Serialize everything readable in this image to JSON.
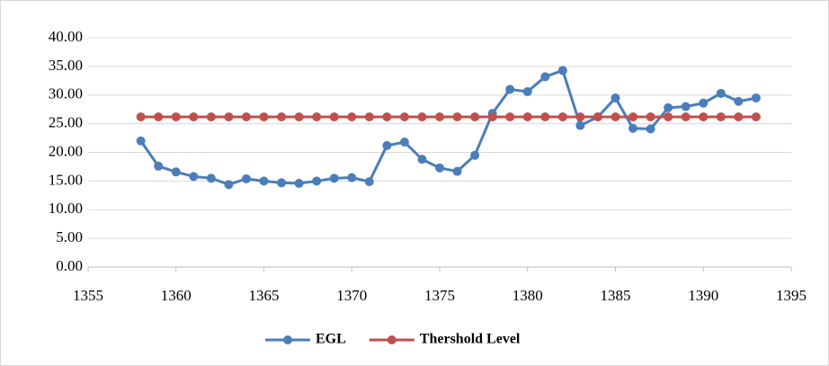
{
  "chart_data": {
    "type": "line",
    "x": [
      1358,
      1359,
      1360,
      1361,
      1362,
      1363,
      1364,
      1365,
      1366,
      1367,
      1368,
      1369,
      1370,
      1371,
      1372,
      1373,
      1374,
      1375,
      1376,
      1377,
      1378,
      1379,
      1380,
      1381,
      1382,
      1383,
      1384,
      1385,
      1386,
      1387,
      1388,
      1389,
      1390,
      1391,
      1392,
      1393
    ],
    "series": [
      {
        "name": "EGL",
        "color": "#4a7ebb",
        "values": [
          22.0,
          17.6,
          16.6,
          15.8,
          15.5,
          14.4,
          15.4,
          15.0,
          14.7,
          14.6,
          15.0,
          15.5,
          15.6,
          14.9,
          21.2,
          21.8,
          18.8,
          17.3,
          16.7,
          19.5,
          26.8,
          31.0,
          30.6,
          33.2,
          34.3,
          24.7,
          26.2,
          29.5,
          24.2,
          24.1,
          27.8,
          28.0,
          28.6,
          30.3,
          28.9,
          29.5
        ]
      },
      {
        "name": "Thershold Level",
        "color": "#c0504d",
        "values": [
          26.2,
          26.2,
          26.2,
          26.2,
          26.2,
          26.2,
          26.2,
          26.2,
          26.2,
          26.2,
          26.2,
          26.2,
          26.2,
          26.2,
          26.2,
          26.2,
          26.2,
          26.2,
          26.2,
          26.2,
          26.2,
          26.2,
          26.2,
          26.2,
          26.2,
          26.2,
          26.2,
          26.2,
          26.2,
          26.2,
          26.2,
          26.2,
          26.2,
          26.2,
          26.2,
          26.2
        ]
      }
    ],
    "xlim": [
      1355,
      1395
    ],
    "xticks": [
      1355,
      1360,
      1365,
      1370,
      1375,
      1380,
      1385,
      1390,
      1395
    ],
    "ylim": [
      0,
      40
    ],
    "yticks": [
      {
        "value": 0,
        "label": "0.00"
      },
      {
        "value": 5,
        "label": "5.00"
      },
      {
        "value": 10,
        "label": "10.00"
      },
      {
        "value": 15,
        "label": "15.00"
      },
      {
        "value": 20,
        "label": "20.00"
      },
      {
        "value": 25,
        "label": "25.00"
      },
      {
        "value": 30,
        "label": "30.00"
      },
      {
        "value": 35,
        "label": "35.00"
      },
      {
        "value": 40,
        "label": "40.00"
      }
    ],
    "grid": true,
    "legend": "bottom"
  }
}
